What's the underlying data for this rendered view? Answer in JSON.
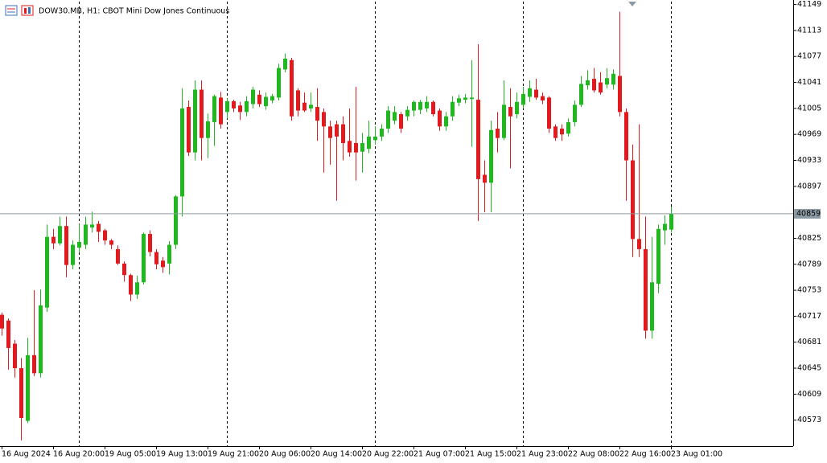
{
  "chart_data": {
    "type": "candlestick",
    "title": "DOW30.MB, H1:  CBOT Mini Dow Jones Continuous",
    "categories": [
      "16 Aug 2024",
      null,
      null,
      null,
      null,
      null,
      null,
      null,
      "16 Aug 20:00",
      null,
      null,
      null,
      null,
      null,
      null,
      null,
      "19 Aug 05:00",
      null,
      null,
      null,
      null,
      null,
      null,
      null,
      "19 Aug 13:00",
      null,
      null,
      null,
      null,
      null,
      null,
      null,
      "19 Aug 21:00",
      null,
      null,
      null,
      null,
      null,
      null,
      null,
      "20 Aug 06:00",
      null,
      null,
      null,
      null,
      null,
      null,
      null,
      "20 Aug 14:00",
      null,
      null,
      null,
      null,
      null,
      null,
      null,
      "20 Aug 22:00",
      null,
      null,
      null,
      null,
      null,
      null,
      null,
      "21 Aug 07:00",
      null,
      null,
      null,
      null,
      null,
      null,
      null,
      "21 Aug 15:00",
      null,
      null,
      null,
      null,
      null,
      null,
      null,
      "21 Aug 23:00",
      null,
      null,
      null,
      null,
      null,
      null,
      null,
      "22 Aug 08:00",
      null,
      null,
      null,
      null,
      null,
      null,
      null,
      "22 Aug 16:00",
      null,
      null,
      null,
      null,
      null,
      null,
      null,
      "23 Aug 01:00"
    ],
    "open": [
      40719,
      40711,
      40679,
      40645,
      40572,
      40663,
      40638,
      40729,
      40827,
      40818,
      40842,
      40788,
      40812,
      40816,
      40840,
      40845,
      40836,
      40822,
      40810,
      40790,
      40774,
      40747,
      40764,
      40831,
      40806,
      40794,
      40790,
      40816,
      40883,
      41007,
      40944,
      41031,
      40964,
      40986,
      41020,
      41000,
      41015,
      41009,
      41000,
      41011,
      41024,
      41008,
      41016,
      41020,
      41059,
      41072,
      41030,
      41013,
      41005,
      41007,
      41000,
      40980,
      40983,
      40983,
      40960,
      40957,
      40945,
      40949,
      40961,
      40966,
      40977,
      40988,
      40997,
      40994,
      41002,
      41003,
      41005,
      41014,
      41002,
      40980,
      40994,
      41013,
      41017,
      41018,
      41017,
      40913,
      40902,
      40977,
      40964,
      41007,
      40997,
      41010,
      41021,
      41031,
      41022,
      41020,
      40980,
      40977,
      40970,
      40986,
      41010,
      41037,
      41046,
      41041,
      41038,
      41038,
      41050,
      41000,
      40933,
      40824,
      40810,
      40697,
      40762,
      40836,
      40837
    ],
    "high": [
      40722,
      40714,
      40684,
      40659,
      40687,
      40753,
      40754,
      40844,
      40838,
      40855,
      40855,
      40822,
      40845,
      40855,
      40862,
      40849,
      40838,
      40824,
      40815,
      40793,
      40776,
      40773,
      40833,
      40836,
      40810,
      40799,
      40821,
      40885,
      41033,
      41016,
      41044,
      41044,
      40998,
      41024,
      41028,
      41019,
      41017,
      41014,
      41022,
      41035,
      41030,
      41027,
      41025,
      41067,
      41081,
      41075,
      41033,
      41027,
      41027,
      41033,
      41005,
      40988,
      40988,
      40994,
      41005,
      41035,
      40971,
      40988,
      40980,
      40983,
      41008,
      41008,
      41000,
      41008,
      41016,
      41017,
      41022,
      41016,
      41005,
      41000,
      41022,
      41024,
      41025,
      41072,
      41094,
      40933,
      40988,
      41000,
      41044,
      41033,
      41027,
      41035,
      41044,
      41046,
      41027,
      41022,
      40983,
      40983,
      40991,
      41016,
      41050,
      41058,
      41061,
      41055,
      41061,
      41059,
      41139,
      41005,
      40955,
      40983,
      40855,
      40827,
      40844,
      40857,
      40869
    ],
    "low": [
      40690,
      40643,
      40632,
      40545,
      40569,
      40634,
      40632,
      40723,
      40810,
      40815,
      40771,
      40782,
      40805,
      40810,
      40833,
      40820,
      40816,
      40810,
      40788,
      40765,
      40738,
      40741,
      40761,
      40800,
      40782,
      40777,
      40775,
      40810,
      40855,
      40939,
      40933,
      40933,
      40936,
      40953,
      40977,
      40991,
      41000,
      40989,
      40994,
      41005,
      41007,
      41003,
      41012,
      41016,
      41055,
      40988,
      40994,
      41000,
      41000,
      40960,
      40916,
      40927,
      40877,
      40933,
      40938,
      40905,
      40916,
      40943,
      40955,
      40960,
      40971,
      40983,
      40971,
      40988,
      40994,
      40997,
      41000,
      40994,
      40974,
      40974,
      40988,
      41008,
      41012,
      40952,
      40849,
      40861,
      40861,
      40944,
      40961,
      40922,
      40991,
      41005,
      41014,
      41017,
      41011,
      40971,
      40960,
      40960,
      40966,
      40980,
      41007,
      41031,
      41027,
      41024,
      41033,
      41031,
      40994,
      40877,
      40799,
      40799,
      40686,
      40686,
      40749,
      40816,
      40833
    ],
    "close": [
      40700,
      40673,
      40645,
      40576,
      40663,
      40638,
      40732,
      40827,
      40818,
      40842,
      40788,
      40816,
      40820,
      40844,
      40844,
      40834,
      40822,
      40816,
      40790,
      40774,
      40747,
      40764,
      40831,
      40806,
      40789,
      40785,
      40816,
      40883,
      41005,
      40944,
      41031,
      40964,
      40987,
      41022,
      40983,
      41015,
      41005,
      41000,
      41015,
      41031,
      41011,
      41021,
      41022,
      41061,
      41074,
      40994,
      41002,
      41002,
      41010,
      40988,
      40980,
      40964,
      40966,
      40957,
      40944,
      40944,
      40957,
      40966,
      40966,
      40977,
      41002,
      41000,
      40977,
      41003,
      41014,
      41014,
      41014,
      40997,
      40980,
      40994,
      41014,
      41019,
      41020,
      41020,
      40907,
      40902,
      40975,
      40964,
      41010,
      40994,
      41014,
      41025,
      41033,
      41020,
      41016,
      40977,
      40964,
      40969,
      40986,
      41010,
      41039,
      41044,
      41030,
      41027,
      41047,
      41053,
      41000,
      40933,
      40824,
      40810,
      40697,
      40764,
      40838,
      40845,
      40859
    ],
    "up_color": "#1fb81f",
    "down_color": "#e3191e",
    "last_price": 40859,
    "ylim": [
      40537,
      41153
    ],
    "yticks": [
      40573,
      40609,
      40645,
      40681,
      40717,
      40753,
      40789,
      40825,
      40897,
      40933,
      40969,
      41005,
      41041,
      41077,
      41113,
      41149
    ]
  }
}
